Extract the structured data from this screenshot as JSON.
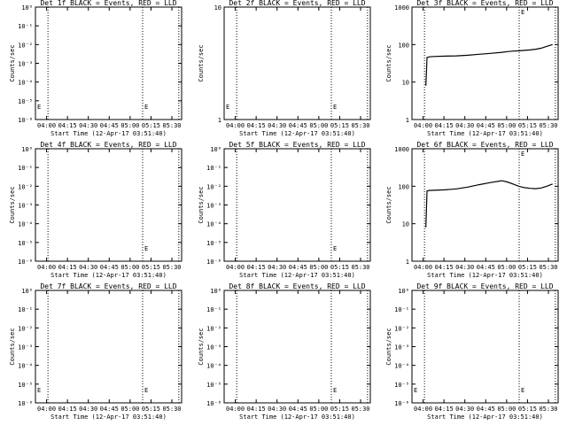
{
  "chart_data": [
    {
      "type": "line",
      "title": "Det 1f BLACK = Events, RED = LLD",
      "xlabel": "Start Time (12-Apr-17 03:51:40)",
      "ylabel": "Counts/sec",
      "yscale": "log",
      "ylim": [
        1,
        10
      ],
      "ytick_labels": [
        "10⁰",
        "10⁻¹",
        "10⁻²",
        "10⁻³",
        "10⁻⁴",
        "10⁻⁵",
        "10⁻⁶"
      ],
      "xtick_labels": [
        "04:00",
        "04:15",
        "04:30",
        "04:45",
        "05:00",
        "05:15",
        "05:30"
      ],
      "x_markers": [
        "04:01",
        "05:09",
        "05:35"
      ],
      "annotations": [
        {
          "text": "E",
          "x": "03:52"
        },
        {
          "text": "E",
          "x": "05:09"
        }
      ],
      "series": []
    },
    {
      "type": "line",
      "title": "Det 2f BLACK = Events, RED = LLD",
      "xlabel": "Start Time (12-Apr-17 03:51:40)",
      "ylabel": "Counts/sec",
      "yscale": "log",
      "ylim": [
        1,
        10
      ],
      "ytick_labels": [
        "10",
        "1"
      ],
      "xtick_labels": [
        "04:00",
        "04:15",
        "04:30",
        "04:45",
        "05:00",
        "05:15",
        "05:30"
      ],
      "x_markers": [
        "04:01",
        "05:09",
        "05:35"
      ],
      "annotations": [
        {
          "text": "E",
          "x": "03:52"
        },
        {
          "text": "E",
          "x": "05:09"
        }
      ],
      "series": []
    },
    {
      "type": "line",
      "title": "Det 3f BLACK = Events, RED = LLD",
      "xlabel": "Start Time (12-Apr-17 03:51:40)",
      "ylabel": "Counts/sec",
      "yscale": "log",
      "ylim": [
        1,
        1000
      ],
      "ytick_labels": [
        "1000",
        "100",
        "10",
        "1"
      ],
      "xtick_labels": [
        "04:00",
        "04:15",
        "04:30",
        "04:45",
        "05:00",
        "05:15",
        "05:30"
      ],
      "x_markers": [
        "04:01",
        "05:09",
        "05:35"
      ],
      "annotations": [
        {
          "text": "E",
          "x": "05:09"
        }
      ],
      "series": [
        {
          "x": [
            233,
            234,
            236,
            240,
            250,
            260,
            270,
            280,
            290,
            300,
            305,
            310,
            315,
            320,
            325,
            330,
            335,
            340,
            345
          ],
          "y": [
            8,
            45,
            47,
            48,
            49,
            50,
            52,
            55,
            58,
            62,
            65,
            67,
            68,
            70,
            72,
            75,
            80,
            90,
            100
          ]
        }
      ]
    },
    {
      "type": "line",
      "title": "Det 4f BLACK = Events, RED = LLD",
      "xlabel": "Start Time (12-Apr-17 03:51:40)",
      "ylabel": "Counts/sec",
      "yscale": "log",
      "ylim": [
        1,
        10
      ],
      "ytick_labels": [
        "10⁰",
        "10⁻¹",
        "10⁻²",
        "10⁻³",
        "10⁻⁴",
        "10⁻⁵",
        "10⁻⁶"
      ],
      "xtick_labels": [
        "04:00",
        "04:15",
        "04:30",
        "04:45",
        "05:00",
        "05:15",
        "05:30"
      ],
      "x_markers": [
        "04:01",
        "05:09",
        "05:35"
      ],
      "annotations": [
        {
          "text": "E",
          "x": "05:09"
        }
      ],
      "series": []
    },
    {
      "type": "line",
      "title": "Det 5f BLACK = Events, RED = LLD",
      "xlabel": "Start Time (12-Apr-17 03:51:40)",
      "ylabel": "Counts/sec",
      "yscale": "log",
      "ylim": [
        1,
        10
      ],
      "ytick_labels": [
        "10⁰",
        "10⁻¹",
        "10⁻²",
        "10⁻³",
        "10⁻⁴",
        "10⁻⁵",
        "10⁻⁶"
      ],
      "xtick_labels": [
        "04:00",
        "04:15",
        "04:30",
        "04:45",
        "05:00",
        "05:15",
        "05:30"
      ],
      "x_markers": [
        "04:01",
        "05:09",
        "05:35"
      ],
      "annotations": [
        {
          "text": "E",
          "x": "05:09"
        }
      ],
      "series": []
    },
    {
      "type": "line",
      "title": "Det 6f BLACK = Events, RED = LLD",
      "xlabel": "Start Time (12-Apr-17 03:51:40)",
      "ylabel": "Counts/sec",
      "yscale": "log",
      "ylim": [
        1,
        1000
      ],
      "ytick_labels": [
        "1000",
        "100",
        "10",
        "1"
      ],
      "xtick_labels": [
        "04:00",
        "04:15",
        "04:30",
        "04:45",
        "05:00",
        "05:15",
        "05:30"
      ],
      "x_markers": [
        "04:01",
        "05:09",
        "05:35"
      ],
      "annotations": [
        {
          "text": "E",
          "x": "05:09"
        }
      ],
      "series": [
        {
          "x": [
            233,
            234,
            236,
            240,
            250,
            260,
            270,
            280,
            290,
            300,
            305,
            310,
            315,
            320,
            325,
            330,
            335,
            340,
            345
          ],
          "y": [
            8,
            75,
            77,
            78,
            80,
            85,
            95,
            110,
            125,
            140,
            130,
            115,
            100,
            92,
            88,
            86,
            90,
            100,
            115
          ]
        }
      ]
    },
    {
      "type": "line",
      "title": "Det 7f BLACK = Events, RED = LLD",
      "xlabel": "Start Time (12-Apr-17 03:51:40)",
      "ylabel": "Counts/sec",
      "yscale": "log",
      "ylim": [
        1,
        10
      ],
      "ytick_labels": [
        "10⁰",
        "10⁻¹",
        "10⁻²",
        "10⁻³",
        "10⁻⁴",
        "10⁻⁵",
        "10⁻⁶"
      ],
      "xtick_labels": [
        "04:00",
        "04:15",
        "04:30",
        "04:45",
        "05:00",
        "05:15",
        "05:30"
      ],
      "x_markers": [
        "04:01",
        "05:09",
        "05:35"
      ],
      "annotations": [
        {
          "text": "E",
          "x": "03:52"
        },
        {
          "text": "E",
          "x": "05:09"
        }
      ],
      "series": []
    },
    {
      "type": "line",
      "title": "Det 8f BLACK = Events, RED = LLD",
      "xlabel": "Start Time (12-Apr-17 03:51:40)",
      "ylabel": "Counts/sec",
      "yscale": "log",
      "ylim": [
        1,
        10
      ],
      "ytick_labels": [
        "10⁰",
        "10⁻¹",
        "10⁻²",
        "10⁻³",
        "10⁻⁴",
        "10⁻⁵",
        "10⁻⁶"
      ],
      "xtick_labels": [
        "04:00",
        "04:15",
        "04:30",
        "04:45",
        "05:00",
        "05:15",
        "05:30"
      ],
      "x_markers": [
        "04:01",
        "05:09",
        "05:35"
      ],
      "annotations": [
        {
          "text": "E",
          "x": "05:09"
        }
      ],
      "series": []
    },
    {
      "type": "line",
      "title": "Det 9f BLACK = Events, RED = LLD",
      "xlabel": "Start Time (12-Apr-17 03:51:40)",
      "ylabel": "Counts/sec",
      "yscale": "log",
      "ylim": [
        1,
        10
      ],
      "ytick_labels": [
        "10⁰",
        "10⁻¹",
        "10⁻²",
        "10⁻³",
        "10⁻⁴",
        "10⁻⁵",
        "10⁻⁶"
      ],
      "xtick_labels": [
        "04:00",
        "04:15",
        "04:30",
        "04:45",
        "05:00",
        "05:15",
        "05:30"
      ],
      "x_markers": [
        "04:01",
        "05:09",
        "05:35"
      ],
      "annotations": [
        {
          "text": "E",
          "x": "03:52"
        },
        {
          "text": "E",
          "x": "05:09"
        }
      ],
      "series": []
    }
  ]
}
